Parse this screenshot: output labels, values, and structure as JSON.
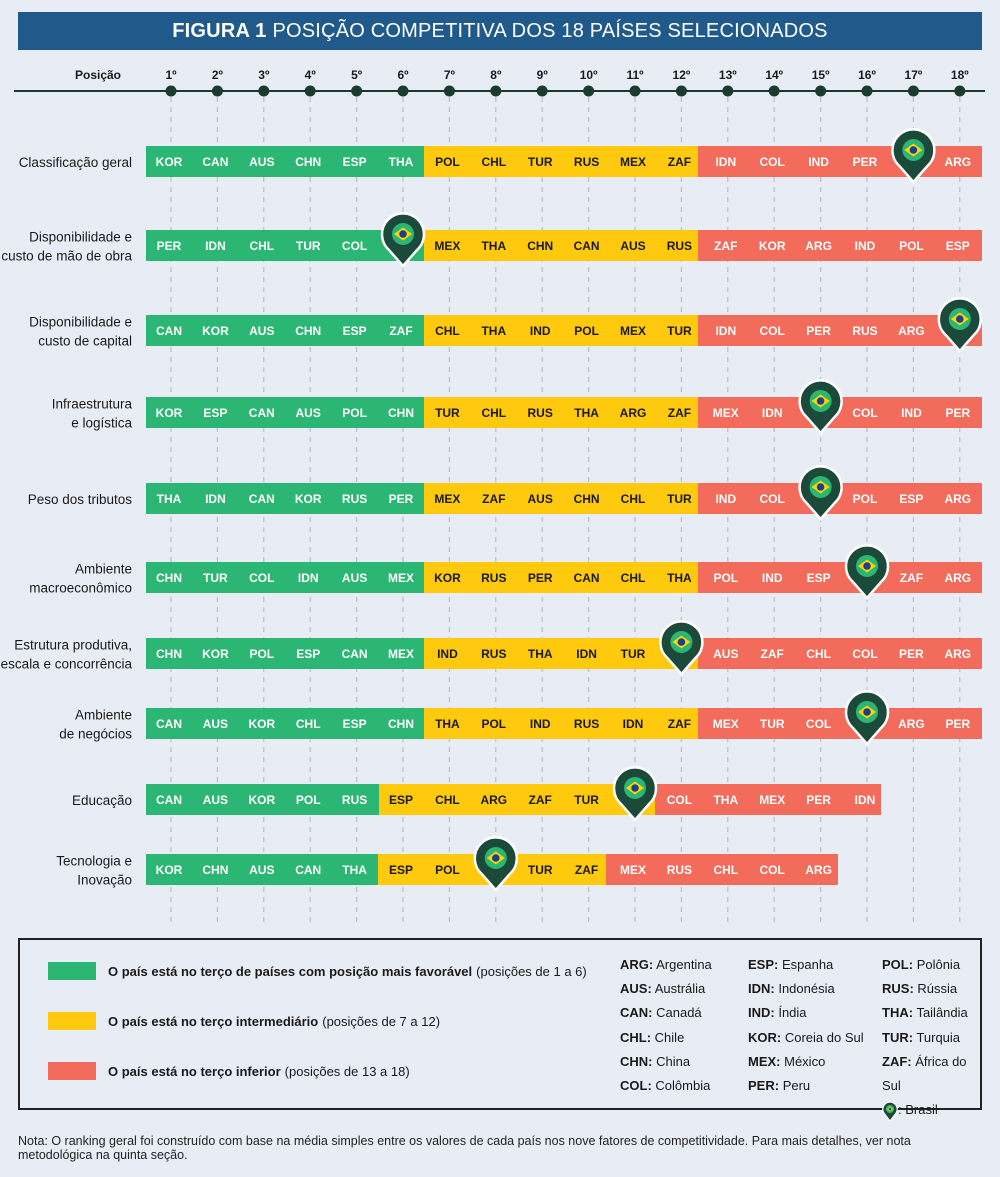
{
  "title": {
    "bold": "FIGURA 1",
    "rest": "POSIÇÃO COMPETITIVA DOS 18 PAÍSES SELECIONADOS"
  },
  "colors": {
    "top": "#2bb673",
    "mid": "#ffc90e",
    "low": "#f26b5b",
    "axis": "#1b3b2f",
    "marker": "#1b4a3a"
  },
  "chart_data": {
    "type": "table",
    "position_label": "Posição",
    "positions": [
      "1º",
      "2º",
      "3º",
      "4º",
      "5º",
      "6º",
      "7º",
      "8º",
      "9º",
      "10º",
      "11º",
      "12º",
      "13º",
      "14º",
      "15º",
      "16º",
      "17º",
      "18º"
    ],
    "rows": [
      {
        "label": [
          "Classificação geral"
        ],
        "countries": [
          "KOR",
          "CAN",
          "AUS",
          "CHN",
          "ESP",
          "THA",
          "POL",
          "CHL",
          "TUR",
          "RUS",
          "MEX",
          "ZAF",
          "IDN",
          "COL",
          "IND",
          "PER",
          "BRA",
          "ARG"
        ],
        "tiers": [
          6,
          6,
          6
        ]
      },
      {
        "label": [
          "Disponibilidade e",
          "custo de mão de obra"
        ],
        "countries": [
          "PER",
          "IDN",
          "CHL",
          "TUR",
          "COL",
          "BRA",
          "MEX",
          "THA",
          "CHN",
          "CAN",
          "AUS",
          "RUS",
          "ZAF",
          "KOR",
          "ARG",
          "IND",
          "POL",
          "ESP"
        ],
        "tiers": [
          6,
          6,
          6
        ]
      },
      {
        "label": [
          "Disponibilidade e",
          "custo de capital"
        ],
        "countries": [
          "CAN",
          "KOR",
          "AUS",
          "CHN",
          "ESP",
          "ZAF",
          "CHL",
          "THA",
          "IND",
          "POL",
          "MEX",
          "TUR",
          "IDN",
          "COL",
          "PER",
          "RUS",
          "ARG",
          "BRA"
        ],
        "tiers": [
          6,
          6,
          6
        ]
      },
      {
        "label": [
          "Infraestrutura",
          "e logística"
        ],
        "countries": [
          "KOR",
          "ESP",
          "CAN",
          "AUS",
          "POL",
          "CHN",
          "TUR",
          "CHL",
          "RUS",
          "THA",
          "ARG",
          "ZAF",
          "MEX",
          "IDN",
          "BRA",
          "COL",
          "IND",
          "PER"
        ],
        "tiers": [
          6,
          6,
          6
        ]
      },
      {
        "label": [
          "Peso dos tributos"
        ],
        "countries": [
          "THA",
          "IDN",
          "CAN",
          "KOR",
          "RUS",
          "PER",
          "MEX",
          "ZAF",
          "AUS",
          "CHN",
          "CHL",
          "TUR",
          "IND",
          "COL",
          "BRA",
          "POL",
          "ESP",
          "ARG"
        ],
        "tiers": [
          6,
          6,
          6
        ]
      },
      {
        "label": [
          "Ambiente",
          "macroeconômico"
        ],
        "countries": [
          "CHN",
          "TUR",
          "COL",
          "IDN",
          "AUS",
          "MEX",
          "KOR",
          "RUS",
          "PER",
          "CAN",
          "CHL",
          "THA",
          "POL",
          "IND",
          "ESP",
          "BRA",
          "ZAF",
          "ARG"
        ],
        "tiers": [
          6,
          6,
          6
        ]
      },
      {
        "label": [
          "Estrutura produtiva,",
          "escala e concorrência"
        ],
        "countries": [
          "CHN",
          "KOR",
          "POL",
          "ESP",
          "CAN",
          "MEX",
          "IND",
          "RUS",
          "THA",
          "IDN",
          "TUR",
          "BRA",
          "AUS",
          "ZAF",
          "CHL",
          "COL",
          "PER",
          "ARG"
        ],
        "tiers": [
          6,
          6,
          6
        ]
      },
      {
        "label": [
          "Ambiente",
          "de negócios"
        ],
        "countries": [
          "CAN",
          "AUS",
          "KOR",
          "CHL",
          "ESP",
          "CHN",
          "THA",
          "POL",
          "IND",
          "RUS",
          "IDN",
          "ZAF",
          "MEX",
          "TUR",
          "COL",
          "BRA",
          "ARG",
          "PER"
        ],
        "tiers": [
          6,
          6,
          6
        ]
      },
      {
        "label": [
          "Educação"
        ],
        "countries": [
          "CAN",
          "AUS",
          "KOR",
          "POL",
          "RUS",
          "ESP",
          "CHL",
          "ARG",
          "ZAF",
          "TUR",
          "BRA",
          "COL",
          "THA",
          "MEX",
          "PER",
          "IDN"
        ],
        "tiers": [
          5,
          6,
          5
        ]
      },
      {
        "label": [
          "Tecnologia e",
          "Inovação"
        ],
        "countries": [
          "KOR",
          "CHN",
          "AUS",
          "CAN",
          "THA",
          "ESP",
          "POL",
          "BRA",
          "TUR",
          "ZAF",
          "MEX",
          "RUS",
          "CHL",
          "COL",
          "ARG"
        ],
        "tiers": [
          5,
          5,
          5
        ]
      }
    ]
  },
  "legend": [
    {
      "bold": "O país está no terço de países com posição mais favorável",
      "rest": "(posições de 1 a 6)",
      "tier": "top"
    },
    {
      "bold": "O país está no terço intermediário",
      "rest": "(posições de 7 a 12)",
      "tier": "mid"
    },
    {
      "bold": "O país está no terço inferior",
      "rest": "(posições de 13 a 18)",
      "tier": "low"
    }
  ],
  "abbreviations": [
    [
      {
        "code": "ARG:",
        "name": "Argentina"
      },
      {
        "code": "AUS:",
        "name": "Austrália"
      },
      {
        "code": "CAN:",
        "name": "Canadá"
      },
      {
        "code": "CHL:",
        "name": "Chile"
      },
      {
        "code": "CHN:",
        "name": "China"
      },
      {
        "code": "COL:",
        "name": "Colômbia"
      }
    ],
    [
      {
        "code": "ESP:",
        "name": "Espanha"
      },
      {
        "code": "IDN:",
        "name": "Indonésia"
      },
      {
        "code": "IND:",
        "name": "Índia"
      },
      {
        "code": "KOR:",
        "name": "Coreia do Sul"
      },
      {
        "code": "MEX:",
        "name": "México"
      },
      {
        "code": "PER:",
        "name": "Peru"
      }
    ],
    [
      {
        "code": "POL:",
        "name": "Polônia"
      },
      {
        "code": "RUS:",
        "name": "Rússia"
      },
      {
        "code": "THA:",
        "name": "Tailândia"
      },
      {
        "code": "TUR:",
        "name": "Turquia"
      },
      {
        "code": "ZAF:",
        "name": "África do Sul"
      },
      {
        "code": "",
        "name": ": Brasil"
      }
    ]
  ],
  "note": "Nota: O ranking geral foi construído com base na média simples entre os valores de cada país nos nove fatores de competitividade. Para mais detalhes, ver nota metodológica na quinta seção."
}
